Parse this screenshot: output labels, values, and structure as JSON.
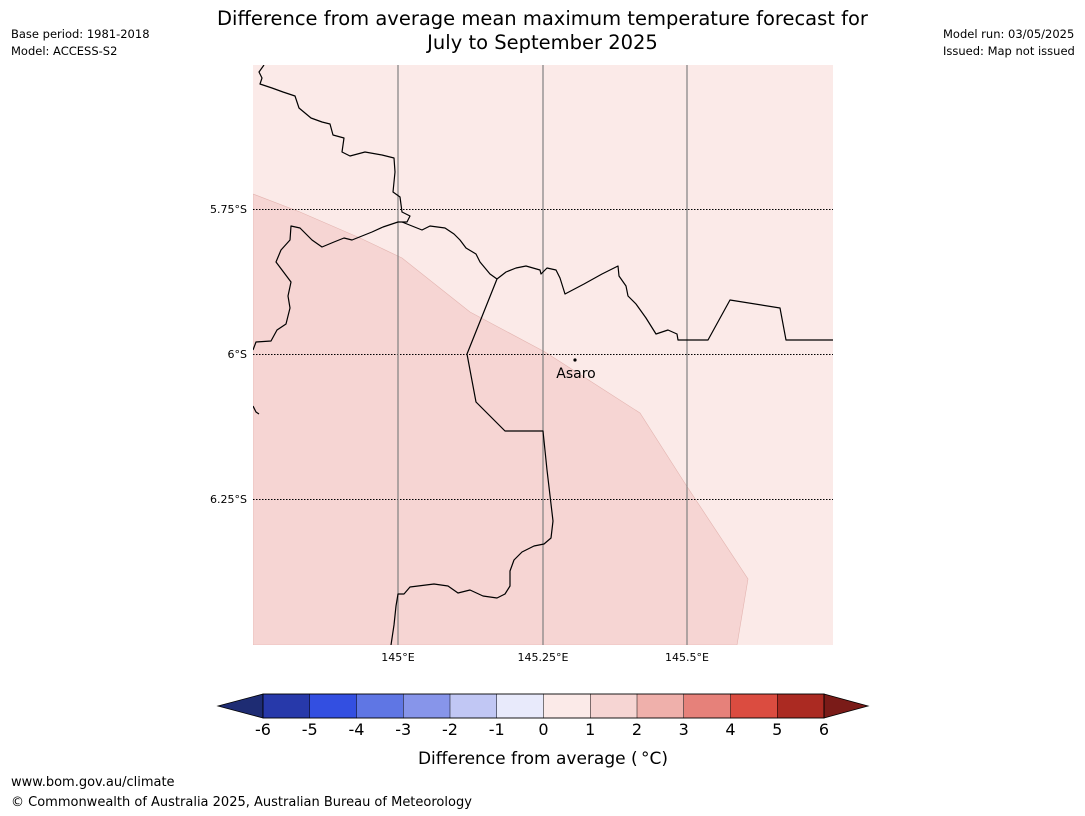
{
  "title": {
    "line1": "Difference from average mean maximum temperature forecast for",
    "line2": "July to September 2025"
  },
  "meta_left": {
    "base_period": "Base period: 1981-2018",
    "model": "Model: ACCESS-S2"
  },
  "meta_right": {
    "model_run": "Model run: 03/05/2025",
    "issued": "Issued: Map not issued"
  },
  "map": {
    "latitude_labels": [
      "5.75°S",
      "6°S",
      "6.25°S"
    ],
    "longitude_labels": [
      "145°E",
      "145.25°E",
      "145.5°E"
    ],
    "places": [
      {
        "name": "Asaro"
      }
    ],
    "zones": [
      {
        "range": "0 to 1",
        "color": "#fbeae8"
      },
      {
        "range": "1 to 2",
        "color": "#f6d5d3"
      }
    ],
    "boundary_color": "#000000",
    "gridline_color": "#808080"
  },
  "colorbar": {
    "label": "Difference from average ( °C)",
    "ticks": [
      "-6",
      "-5",
      "-4",
      "-3",
      "-2",
      "-1",
      "0",
      "1",
      "2",
      "3",
      "4",
      "5",
      "6"
    ],
    "low_extension_color": "#1e2c73",
    "high_extension_color": "#7a1b18",
    "colors": [
      "#2739aa",
      "#334fe1",
      "#5f76e4",
      "#8795ea",
      "#c1c7f4",
      "#e8eafb",
      "#fbeae8",
      "#f6d5d3",
      "#efb0ab",
      "#e6817a",
      "#db4c40",
      "#ab2a22"
    ]
  },
  "footer": {
    "url": "www.bom.gov.au/climate",
    "copyright": "© Commonwealth of Australia 2025, Australian Bureau of Meteorology"
  }
}
